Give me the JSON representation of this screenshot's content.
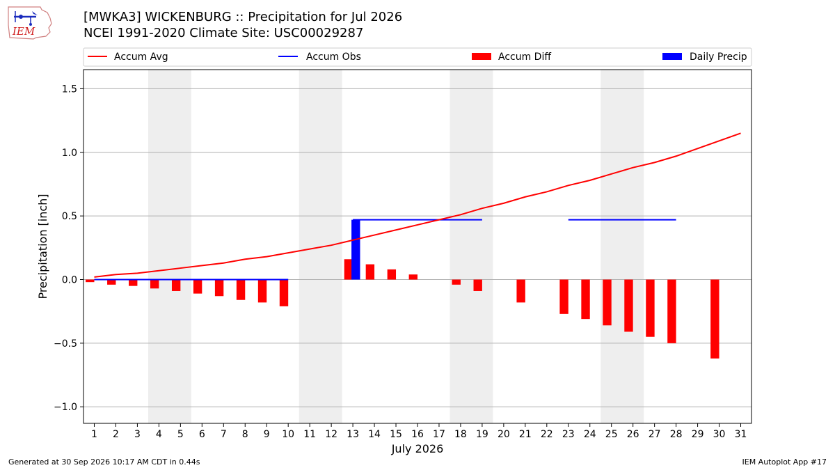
{
  "header": {
    "title_line1": "[MWKA3] WICKENBURG :: Precipitation for Jul 2026",
    "title_line2": "NCEI 1991-2020 Climate Site: USC00029287",
    "logo_text": "IEM"
  },
  "footer": {
    "generated": "Generated at 30 Sep 2026 10:17 AM CDT in 0.44s",
    "app": "IEM Autoplot App #17"
  },
  "colors": {
    "accum_avg": "#ff0000",
    "accum_obs": "#0000ff",
    "accum_diff": "#ff0000",
    "daily_precip": "#0000ff",
    "weekend_shade": "#eeeeee",
    "grid": "#b0b0b0"
  },
  "chart_data": {
    "type": "bar",
    "title": "[MWKA3] WICKENBURG :: Precipitation for Jul 2026",
    "xlabel": "July 2026",
    "ylabel": "Precipitation [inch]",
    "xlim": [
      0.5,
      31.5
    ],
    "ylim": [
      -1.13,
      1.65
    ],
    "grid": true,
    "legend_position": "top",
    "legend": [
      "Accum Avg",
      "Accum Obs",
      "Accum Diff",
      "Daily Precip"
    ],
    "x_ticks": [
      1,
      2,
      3,
      4,
      5,
      6,
      7,
      8,
      9,
      10,
      11,
      12,
      13,
      14,
      15,
      16,
      17,
      18,
      19,
      20,
      21,
      22,
      23,
      24,
      25,
      26,
      27,
      28,
      29,
      30,
      31
    ],
    "y_ticks": [
      -1.0,
      -0.5,
      0.0,
      0.5,
      1.0,
      1.5
    ],
    "y_tick_labels": [
      "−1.0",
      "−0.5",
      "0.0",
      "0.5",
      "1.0",
      "1.5"
    ],
    "weekend_spans": [
      [
        3.5,
        5.5
      ],
      [
        10.5,
        12.5
      ],
      [
        17.5,
        19.5
      ],
      [
        24.5,
        26.5
      ]
    ],
    "accum_avg": {
      "name": "Accum Avg",
      "x": [
        1,
        2,
        3,
        4,
        5,
        6,
        7,
        8,
        9,
        10,
        11,
        12,
        13,
        14,
        15,
        16,
        17,
        18,
        19,
        20,
        21,
        22,
        23,
        24,
        25,
        26,
        27,
        28,
        29,
        30,
        31
      ],
      "y": [
        0.02,
        0.04,
        0.05,
        0.07,
        0.09,
        0.11,
        0.13,
        0.16,
        0.18,
        0.21,
        0.24,
        0.27,
        0.31,
        0.35,
        0.39,
        0.43,
        0.47,
        0.51,
        0.56,
        0.6,
        0.65,
        0.69,
        0.74,
        0.78,
        0.83,
        0.88,
        0.92,
        0.97,
        1.03,
        1.09,
        1.15
      ]
    },
    "accum_obs": {
      "name": "Accum Obs",
      "segments": [
        {
          "x": [
            1,
            10
          ],
          "y": 0.0
        },
        {
          "x": [
            13,
            19
          ],
          "y": 0.47
        },
        {
          "x": [
            23,
            28
          ],
          "y": 0.47
        }
      ]
    },
    "accum_diff": {
      "name": "Accum Diff",
      "x": [
        1,
        2,
        3,
        4,
        5,
        6,
        7,
        8,
        9,
        10,
        13,
        14,
        15,
        16,
        18,
        19,
        21,
        23,
        24,
        25,
        26,
        27,
        28,
        30
      ],
      "values": [
        -0.02,
        -0.04,
        -0.05,
        -0.07,
        -0.09,
        -0.11,
        -0.13,
        -0.16,
        -0.18,
        -0.21,
        0.16,
        0.12,
        0.08,
        0.04,
        -0.04,
        -0.09,
        -0.18,
        -0.27,
        -0.31,
        -0.36,
        -0.41,
        -0.45,
        -0.5,
        -0.62
      ]
    },
    "daily_precip": {
      "name": "Daily Precip",
      "x": [
        13
      ],
      "values": [
        0.47
      ]
    }
  }
}
